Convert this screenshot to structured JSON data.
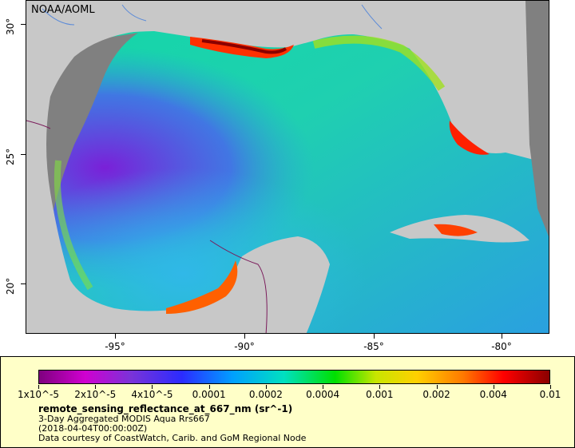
{
  "map": {
    "credit": "NOAA/AOML",
    "lat_ticks": [
      "30°",
      "25°",
      "20°"
    ],
    "lon_ticks": [
      "-95°",
      "-90°",
      "-85°",
      "-80°"
    ],
    "land_color": "#c8c8c8",
    "nodata_color": "#808080"
  },
  "legend": {
    "colorbar_labels": [
      "1x10^-5",
      "2x10^-5",
      "4x10^-5",
      "0.0001",
      "0.0002",
      "0.0004",
      "0.001",
      "0.002",
      "0.004",
      "0.01"
    ],
    "variable": "remote_sensing_reflectance_at_667_nm (sr^-1)",
    "dataset": "3-Day Aggregated MODIS Aqua Rrs667",
    "time": "(2018-04-04T00:00:00Z)",
    "source": "Data courtesy of CoastWatch, Carib. and GoM Regional Node",
    "background_color": "#ffffc8"
  }
}
